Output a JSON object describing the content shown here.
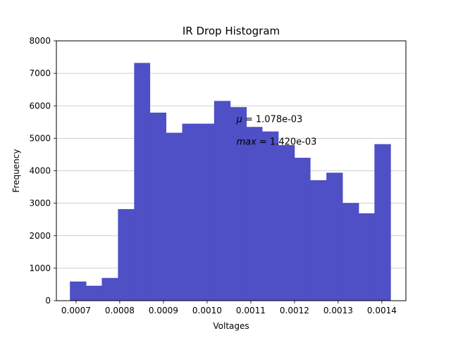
{
  "chart_data": {
    "type": "bar",
    "title": "IR Drop Histogram",
    "xlabel": "Voltages",
    "ylabel": "Frequency",
    "xlim": [
      0.000655,
      0.001455
    ],
    "ylim": [
      0,
      8000
    ],
    "bin_edges": [
      0.000686,
      0.000723,
      0.000759,
      0.000796,
      0.000833,
      0.000869,
      0.000906,
      0.000943,
      0.00098,
      0.001016,
      0.001053,
      0.00109,
      0.001126,
      0.001163,
      0.0012,
      0.001236,
      0.001273,
      0.00131,
      0.001347,
      0.001383,
      0.00142
    ],
    "values": [
      590,
      460,
      700,
      2820,
      7320,
      5790,
      5170,
      5450,
      5450,
      6150,
      5960,
      5350,
      5210,
      4790,
      4400,
      3710,
      3940,
      3010,
      2690,
      4820
    ],
    "x_ticks": [
      0.0007,
      0.0008,
      0.0009,
      0.001,
      0.0011,
      0.0012,
      0.0013,
      0.0014
    ],
    "x_tick_labels": [
      "0.0007",
      "0.0008",
      "0.0009",
      "0.0010",
      "0.0011",
      "0.0012",
      "0.0013",
      "0.0014"
    ],
    "y_ticks": [
      0,
      1000,
      2000,
      3000,
      4000,
      5000,
      6000,
      7000,
      8000
    ],
    "y_tick_labels": [
      "0",
      "1000",
      "2000",
      "3000",
      "4000",
      "5000",
      "6000",
      "7000",
      "8000"
    ],
    "grid": "horizontal",
    "bar_color": "#4f4fc6",
    "grid_color": "#c0c0c0",
    "annotations": [
      {
        "symbol": "μ",
        "text": " = 1.078e-03",
        "x": 0.001067,
        "y": 5500
      },
      {
        "symbol": "max",
        "text": " = 1.420e-03",
        "x": 0.001067,
        "y": 4800
      }
    ]
  }
}
